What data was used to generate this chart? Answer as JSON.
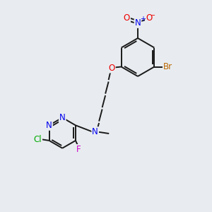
{
  "background_color": "#e8ecf0",
  "bond_color": "#1a1a1a",
  "atom_colors": {
    "N": "#0000ee",
    "O": "#ee0000",
    "Br": "#bb6600",
    "Cl": "#00aa00",
    "F": "#cc00cc",
    "C": "#1a6600"
  },
  "font_size": 8.5,
  "lw": 1.4
}
